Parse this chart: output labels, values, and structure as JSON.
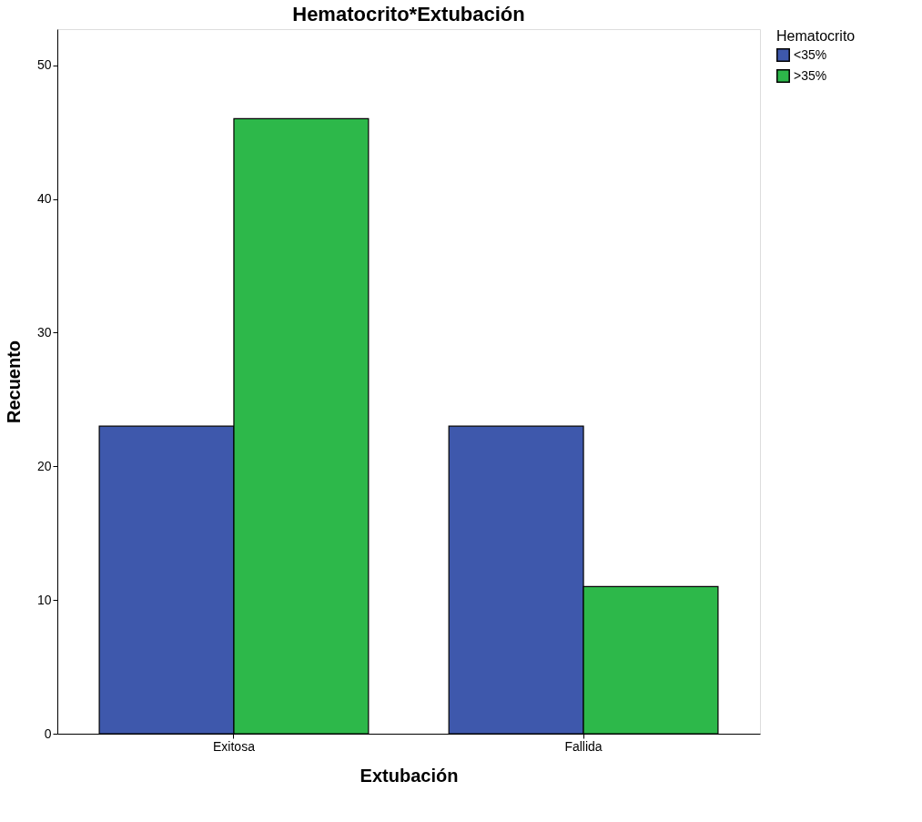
{
  "chart_data": {
    "type": "bar",
    "title": "Hematocrito*Extubación",
    "xlabel": "Extubación",
    "ylabel": "Recuento",
    "legend_title": "Hematocrito",
    "categories": [
      "Exitosa",
      "Fallida"
    ],
    "series": [
      {
        "name": "<35%",
        "color": "#3e58ac",
        "values": [
          23,
          23
        ]
      },
      {
        "name": ">35%",
        "color": "#2db84a",
        "values": [
          46,
          11
        ]
      }
    ],
    "ylim": [
      0,
      52.7
    ],
    "yticks": [
      0,
      10,
      20,
      30,
      40,
      50
    ],
    "grid": false,
    "legend": "top right"
  }
}
